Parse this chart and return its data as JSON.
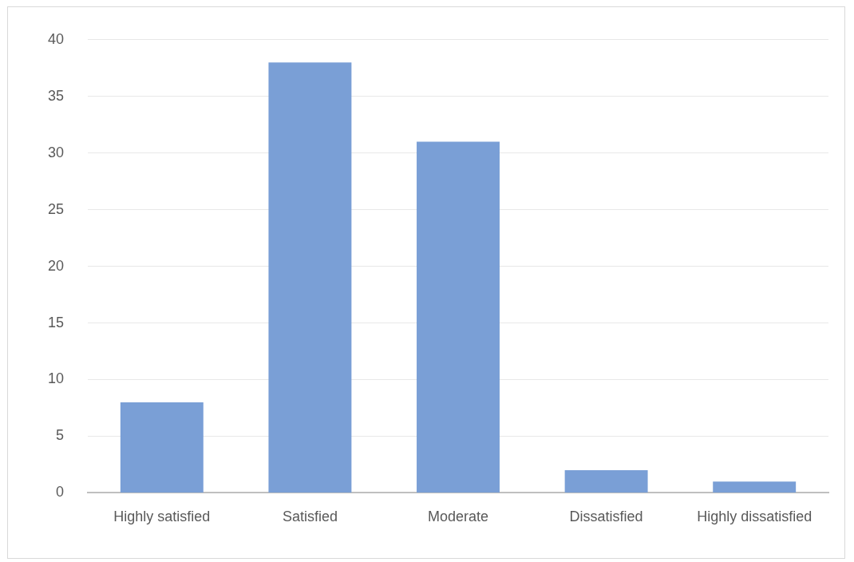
{
  "chart_data": {
    "type": "bar",
    "categories": [
      "Highly satisfied",
      "Satisfied",
      "Moderate",
      "Dissatisfied",
      "Highly dissatisfied"
    ],
    "values": [
      8,
      38,
      31,
      2,
      1
    ],
    "color": "#7a9fd6",
    "ylim": [
      0,
      40
    ],
    "yticks": [
      0,
      5,
      10,
      15,
      20,
      25,
      30,
      35,
      40
    ],
    "grid": "y"
  }
}
